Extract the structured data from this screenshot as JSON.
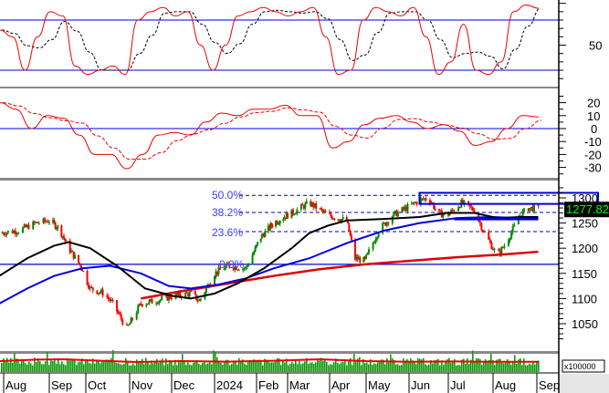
{
  "chart_data": {
    "type": "candlestick",
    "colors": {
      "up": "#008800",
      "down": "#ff0000",
      "ma_short": "#000000",
      "ma_mid": "#0000dd",
      "ma_long": "#dd0000",
      "level": "#0000dd",
      "last_price_bg": "#000000",
      "last_price_text": "#00ff00",
      "volume": "#119911"
    },
    "x_axis": {
      "ticks": [
        {
          "date": "2023-08-01",
          "label": "Aug"
        },
        {
          "date": "2023-09-01",
          "label": "Sep"
        },
        {
          "date": "2023-10-01",
          "label": "Oct"
        },
        {
          "date": "2023-11-01",
          "label": "Nov"
        },
        {
          "date": "2023-12-01",
          "label": "Dec"
        },
        {
          "date": "2024-01-01",
          "label": "2024"
        },
        {
          "date": "2024-02-01",
          "label": "Feb"
        },
        {
          "date": "2024-03-01",
          "label": "Mar"
        },
        {
          "date": "2024-04-01",
          "label": "Apr"
        },
        {
          "date": "2024-05-01",
          "label": "May"
        },
        {
          "date": "2024-06-01",
          "label": "Jun"
        },
        {
          "date": "2024-07-01",
          "label": "Jul"
        },
        {
          "date": "2024-08-01",
          "label": "Aug"
        },
        {
          "date": "2024-09-01",
          "label": "Sep"
        }
      ]
    },
    "price_panel": {
      "ylim": [
        1000,
        1330
      ],
      "yticks": [
        1050,
        1100,
        1150,
        1200,
        1250,
        1300
      ],
      "last_price": "1277.820",
      "last_value": 1277.82,
      "close": [
        [
          "2023-07-29",
          1230
        ],
        [
          "2023-08-11",
          1235
        ],
        [
          "2023-08-23",
          1250
        ],
        [
          "2023-09-01",
          1255
        ],
        [
          "2023-09-09",
          1240
        ],
        [
          "2023-09-17",
          1200
        ],
        [
          "2023-09-28",
          1160
        ],
        [
          "2023-10-04",
          1120
        ],
        [
          "2023-10-14",
          1110
        ],
        [
          "2023-10-20",
          1090
        ],
        [
          "2023-10-30",
          1040
        ],
        [
          "2023-11-09",
          1090
        ],
        [
          "2023-11-19",
          1095
        ],
        [
          "2023-12-02",
          1105
        ],
        [
          "2023-12-15",
          1110
        ],
        [
          "2023-12-21",
          1095
        ],
        [
          "2024-01-01",
          1150
        ],
        [
          "2024-01-11",
          1165
        ],
        [
          "2024-01-24",
          1160
        ],
        [
          "2024-02-04",
          1220
        ],
        [
          "2024-02-17",
          1250
        ],
        [
          "2024-03-04",
          1270
        ],
        [
          "2024-03-17",
          1290
        ],
        [
          "2024-03-31",
          1265
        ],
        [
          "2024-04-15",
          1255
        ],
        [
          "2024-04-22",
          1180
        ],
        [
          "2024-04-30",
          1175
        ],
        [
          "2024-05-10",
          1235
        ],
        [
          "2024-05-20",
          1265
        ],
        [
          "2024-05-30",
          1280
        ],
        [
          "2024-06-09",
          1295
        ],
        [
          "2024-06-16",
          1300
        ],
        [
          "2024-06-23",
          1270
        ],
        [
          "2024-06-30",
          1265
        ],
        [
          "2024-07-10",
          1290
        ],
        [
          "2024-07-19",
          1275
        ],
        [
          "2024-07-26",
          1230
        ],
        [
          "2024-08-04",
          1185
        ],
        [
          "2024-08-10",
          1210
        ],
        [
          "2024-08-20",
          1265
        ],
        [
          "2024-08-26",
          1280
        ],
        [
          "2024-09-02",
          1277.82
        ]
      ],
      "ma_short": [
        [
          "2023-07-29",
          1145
        ],
        [
          "2023-08-17",
          1180
        ],
        [
          "2023-09-05",
          1205
        ],
        [
          "2023-09-17",
          1212
        ],
        [
          "2023-10-04",
          1200
        ],
        [
          "2023-10-23",
          1165
        ],
        [
          "2023-11-12",
          1120
        ],
        [
          "2023-12-02",
          1105
        ],
        [
          "2023-12-15",
          1100
        ],
        [
          "2024-01-01",
          1110
        ],
        [
          "2024-01-18",
          1130
        ],
        [
          "2024-02-08",
          1160
        ],
        [
          "2024-03-04",
          1200
        ],
        [
          "2024-03-17",
          1230
        ],
        [
          "2024-03-31",
          1245
        ],
        [
          "2024-04-15",
          1255
        ],
        [
          "2024-05-14",
          1258
        ],
        [
          "2024-06-09",
          1262
        ],
        [
          "2024-06-30",
          1270
        ],
        [
          "2024-07-19",
          1270
        ],
        [
          "2024-08-04",
          1260
        ],
        [
          "2024-08-20",
          1262
        ],
        [
          "2024-09-02",
          1262
        ]
      ],
      "ma_mid": [
        [
          "2023-07-29",
          1090
        ],
        [
          "2023-08-17",
          1120
        ],
        [
          "2023-09-05",
          1145
        ],
        [
          "2023-09-28",
          1160
        ],
        [
          "2023-10-18",
          1165
        ],
        [
          "2023-11-09",
          1150
        ],
        [
          "2023-11-29",
          1125
        ],
        [
          "2023-12-15",
          1120
        ],
        [
          "2024-01-04",
          1128
        ],
        [
          "2024-01-24",
          1140
        ],
        [
          "2024-02-17",
          1160
        ],
        [
          "2024-03-17",
          1180
        ],
        [
          "2024-04-15",
          1210
        ],
        [
          "2024-05-14",
          1235
        ],
        [
          "2024-06-09",
          1250
        ],
        [
          "2024-07-07",
          1260
        ],
        [
          "2024-08-01",
          1262
        ],
        [
          "2024-09-02",
          1258
        ]
      ],
      "ma_long": [
        [
          "2023-11-09",
          1100
        ],
        [
          "2023-12-09",
          1115
        ],
        [
          "2024-01-11",
          1130
        ],
        [
          "2024-02-17",
          1145
        ],
        [
          "2024-03-24",
          1158
        ],
        [
          "2024-04-30",
          1168
        ],
        [
          "2024-06-02",
          1175
        ],
        [
          "2024-07-07",
          1182
        ],
        [
          "2024-08-10",
          1188
        ],
        [
          "2024-09-02",
          1193
        ]
      ],
      "fibonacci": [
        {
          "label": "50.0%",
          "value": 1305
        },
        {
          "label": "38.2%",
          "value": 1271
        },
        {
          "label": "23.6%",
          "value": 1233
        },
        {
          "label": "0.0%",
          "value": 1168
        }
      ],
      "resistance_box": {
        "from": "2024-06-09",
        "to": "2024-10-20",
        "low": 1288,
        "high": 1310
      },
      "support_line": {
        "from": "2024-07-05",
        "to": "2024-09-02",
        "value": 1258
      }
    },
    "stochastic_panel": {
      "ylim": [
        0,
        105
      ],
      "yticks": [
        50
      ],
      "levels": [
        20,
        80
      ],
      "k": [
        68,
        60,
        20,
        60,
        90,
        85,
        25,
        15,
        20,
        25,
        15,
        80,
        90,
        95,
        85,
        90,
        50,
        20,
        50,
        85,
        90,
        95,
        90,
        85,
        90,
        95,
        60,
        15,
        20,
        80,
        95,
        90,
        85,
        95,
        60,
        15,
        30,
        75,
        20,
        15,
        30,
        90,
        98,
        94
      ]
    },
    "oscillator_panel": {
      "ylim": [
        -36,
        26
      ],
      "yticks": [
        20,
        10,
        0,
        -10,
        -20,
        -30
      ],
      "zero_line": 0,
      "values": [
        20,
        15,
        0,
        10,
        8,
        -5,
        -20,
        -20,
        -31,
        -20,
        -5,
        -3,
        -5,
        5,
        12,
        10,
        15,
        15,
        18,
        10,
        10,
        -15,
        -10,
        3,
        8,
        10,
        5,
        0,
        3,
        -2,
        -13,
        -10,
        0,
        10,
        9
      ]
    },
    "volume_panel": {
      "unit_label": "x100000",
      "average_level": 0.6
    }
  }
}
